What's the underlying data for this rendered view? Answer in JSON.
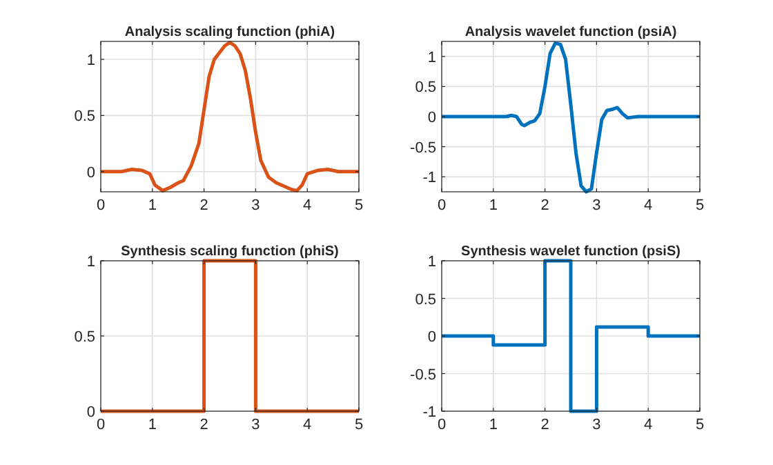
{
  "chart_data": [
    {
      "type": "line",
      "title": "Analysis scaling function (phiA)",
      "x": [
        0,
        0.4,
        0.6,
        0.8,
        0.95,
        1.05,
        1.2,
        1.35,
        1.5,
        1.6,
        1.75,
        1.9,
        2.0,
        2.1,
        2.2,
        2.3,
        2.4,
        2.5,
        2.6,
        2.7,
        2.8,
        2.9,
        3.0,
        3.1,
        3.25,
        3.4,
        3.5,
        3.7,
        3.8,
        3.9,
        4.0,
        4.2,
        4.4,
        4.6,
        5
      ],
      "series": [
        {
          "color": "#d95319",
          "values": [
            0,
            0,
            0.02,
            0.01,
            -0.02,
            -0.12,
            -0.17,
            -0.14,
            -0.1,
            -0.08,
            0.05,
            0.25,
            0.55,
            0.85,
            1.0,
            1.06,
            1.12,
            1.15,
            1.12,
            1.05,
            0.9,
            0.65,
            0.35,
            0.1,
            -0.05,
            -0.1,
            -0.12,
            -0.16,
            -0.17,
            -0.12,
            -0.02,
            0.01,
            0.02,
            0,
            0
          ]
        }
      ],
      "xlim": [
        0,
        5
      ],
      "xticks": [
        0,
        1,
        2,
        3,
        4,
        5
      ],
      "ylim": [
        -0.18,
        1.16
      ],
      "yticks": [
        0,
        0.5,
        1
      ],
      "grid": true
    },
    {
      "type": "line",
      "title": "Analysis wavelet function (psiA)",
      "x": [
        0,
        1.25,
        1.35,
        1.45,
        1.55,
        1.6,
        1.7,
        1.8,
        1.9,
        2.0,
        2.1,
        2.2,
        2.3,
        2.4,
        2.5,
        2.6,
        2.7,
        2.8,
        2.9,
        3.0,
        3.1,
        3.2,
        3.3,
        3.4,
        3.5,
        3.6,
        3.7,
        3.8,
        5
      ],
      "series": [
        {
          "color": "#0072bd",
          "values": [
            0,
            0,
            0.02,
            0,
            -0.13,
            -0.15,
            -0.1,
            -0.07,
            0.05,
            0.5,
            1.05,
            1.22,
            1.2,
            0.95,
            0.2,
            -0.6,
            -1.15,
            -1.25,
            -1.2,
            -0.6,
            -0.05,
            0.1,
            0.12,
            0.15,
            0.05,
            -0.02,
            -0.01,
            0,
            0
          ]
        }
      ],
      "xlim": [
        0,
        5
      ],
      "xticks": [
        0,
        1,
        2,
        3,
        4,
        5
      ],
      "ylim": [
        -1.25,
        1.25
      ],
      "yticks": [
        -1,
        -0.5,
        0,
        0.5,
        1
      ],
      "grid": true
    },
    {
      "type": "step",
      "title": "Synthesis scaling function (phiS)",
      "x": [
        0,
        2,
        3,
        5
      ],
      "series": [
        {
          "color": "#d95319",
          "values": [
            0,
            1,
            0,
            0
          ]
        }
      ],
      "xlim": [
        0,
        5
      ],
      "xticks": [
        0,
        1,
        2,
        3,
        4,
        5
      ],
      "ylim": [
        0,
        1
      ],
      "yticks": [
        0,
        0.5,
        1
      ],
      "grid": true
    },
    {
      "type": "step",
      "title": "Synthesis wavelet function (psiS)",
      "x": [
        0,
        1,
        2,
        2.5,
        3,
        4,
        5
      ],
      "series": [
        {
          "color": "#0072bd",
          "values": [
            0,
            -0.12,
            1,
            -1,
            0.12,
            0,
            0
          ]
        }
      ],
      "xlim": [
        0,
        5
      ],
      "xticks": [
        0,
        1,
        2,
        3,
        4,
        5
      ],
      "ylim": [
        -1,
        1
      ],
      "yticks": [
        -1,
        -0.5,
        0,
        0.5,
        1
      ],
      "grid": true
    }
  ]
}
